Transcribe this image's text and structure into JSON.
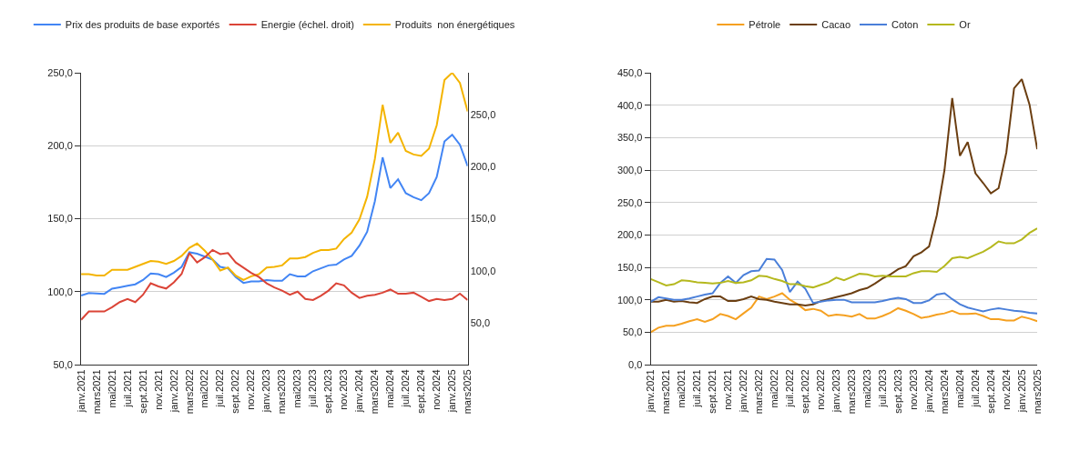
{
  "chart_data": [
    {
      "type": "line",
      "categories": [
        "janv.2021",
        null,
        "mars2021",
        null,
        "mai2021",
        null,
        "juil.2021",
        null,
        "sept.2021",
        null,
        "nov.2021",
        null,
        "janv.2022",
        null,
        "mars2022",
        null,
        "mai2022",
        null,
        "juil.2022",
        null,
        "sept.2022",
        null,
        "nov.2022",
        null,
        "janv.2023",
        null,
        "mars2023",
        null,
        "mai2023",
        null,
        "juil.2023",
        null,
        "sept.2023",
        null,
        "nov.2023",
        null,
        "janv.2024",
        null,
        "mars2024",
        null,
        "mai2024",
        null,
        "juil.2024",
        null,
        "sept.2024",
        null,
        "nov.2024",
        null,
        "janv.2025",
        null,
        "mars2025"
      ],
      "series": [
        {
          "name": "Prix des produits de base exportés",
          "color": "#4285f4",
          "values": [
            97.4,
            99,
            98.8,
            98.5,
            102,
            103,
            104,
            105,
            108,
            112.5,
            112,
            110,
            113,
            117,
            127,
            126,
            124,
            122,
            117,
            116,
            110,
            106,
            107,
            107,
            108,
            107.5,
            107.5,
            112,
            110.5,
            110.5,
            114,
            116,
            118,
            118.5,
            122,
            124.5,
            131.5,
            141,
            162,
            192,
            171,
            177,
            167.5,
            164.7,
            162.7,
            167.5,
            178.6,
            203,
            207.5,
            200.7,
            186
          ]
        },
        {
          "name": "Energie (échel. droit)",
          "color": "#db4437",
          "axis": "y2",
          "values": [
            53,
            61,
            61,
            61,
            65,
            70,
            73,
            70,
            77,
            88,
            85,
            83,
            89,
            97,
            117,
            108,
            113,
            120,
            116,
            117,
            108,
            103,
            98,
            94,
            88,
            84,
            81,
            77,
            80,
            73,
            72,
            76,
            81,
            88,
            86,
            79,
            74,
            76,
            77,
            79,
            82,
            78,
            78,
            79,
            75,
            71,
            73,
            72,
            73,
            78,
            72
          ]
        },
        {
          "name": "Produits  non énergétiques",
          "color": "#f4b400",
          "values": [
            112,
            112,
            111,
            111,
            115,
            115,
            115,
            117,
            119,
            121,
            120.5,
            119,
            121,
            124.5,
            130,
            133,
            128,
            122,
            114.5,
            116.5,
            111,
            108,
            110.5,
            112,
            116.5,
            117,
            118,
            122.7,
            122.7,
            123.7,
            126.6,
            128.5,
            128.5,
            129.5,
            136,
            140.5,
            149.5,
            165,
            191,
            228,
            202,
            209,
            196.4,
            194,
            193,
            198,
            214,
            245,
            250,
            243,
            223.5
          ]
        }
      ],
      "ylim": [
        50,
        250
      ],
      "yticks": [
        {
          "value": 50,
          "label": "50,0"
        },
        {
          "value": 100,
          "label": "100,0"
        },
        {
          "value": 150,
          "label": "150,0"
        },
        {
          "value": 200,
          "label": "200,0"
        },
        {
          "value": 250,
          "label": "250,0"
        }
      ],
      "y2lim": [
        10,
        290
      ],
      "y2ticks": [
        {
          "value": 50,
          "label": "50,0"
        },
        {
          "value": 100,
          "label": "100,0"
        },
        {
          "value": 150,
          "label": "150,0"
        },
        {
          "value": 200,
          "label": "200,0"
        },
        {
          "value": 250,
          "label": "250,0"
        }
      ],
      "grid": "y",
      "legend": "top",
      "marker": "none",
      "line_style": "solid"
    },
    {
      "type": "line",
      "categories": [
        "janv.2021",
        null,
        "mars2021",
        null,
        "mai2021",
        null,
        "juil.2021",
        null,
        "sept.2021",
        null,
        "nov.2021",
        null,
        "janv.2022",
        null,
        "mars2022",
        null,
        "mai2022",
        null,
        "juil.2022",
        null,
        "sept.2022",
        null,
        "nov.2022",
        null,
        "janv.2023",
        null,
        "mars2023",
        null,
        "mai2023",
        null,
        "juil.2023",
        null,
        "sept.2023",
        null,
        "nov.2023",
        null,
        "janv.2024",
        null,
        "mars2024",
        null,
        "mai2024",
        null,
        "juil.2024",
        null,
        "sept.2024",
        null,
        "nov.2024",
        null,
        "janv.2025",
        null,
        "mars2025"
      ],
      "series": [
        {
          "name": "Pétrole",
          "color": "#f5a020",
          "values": [
            50,
            57,
            60,
            60,
            63,
            67,
            70,
            66,
            70,
            78,
            75,
            70,
            79,
            88,
            105,
            101,
            105,
            110,
            100,
            93,
            84,
            86,
            83,
            75,
            77,
            76,
            74,
            78,
            71,
            71,
            75,
            80,
            87,
            83,
            78,
            72,
            74,
            77,
            79,
            83,
            78,
            78,
            79,
            75,
            70,
            70,
            68,
            68,
            74,
            71,
            67
          ]
        },
        {
          "name": "Cacao",
          "color": "#6b3e11",
          "values": [
            97,
            97,
            100,
            97,
            98,
            96,
            95,
            101,
            105,
            105,
            98,
            98,
            101,
            105,
            101,
            100,
            97,
            95,
            93,
            93,
            91,
            93,
            98,
            101,
            104,
            107,
            110,
            115,
            118,
            125,
            133,
            139,
            147,
            152,
            167,
            173,
            182,
            230,
            300,
            411,
            322,
            343,
            295,
            280,
            264,
            272,
            327,
            426,
            440,
            401,
            332
          ]
        },
        {
          "name": "Coton",
          "color": "#4a7fd9",
          "values": [
            97,
            104,
            102,
            100,
            100,
            102,
            105,
            108,
            110,
            126,
            136,
            126,
            138,
            144,
            145,
            163,
            162,
            146,
            112,
            128,
            117,
            95,
            97,
            99,
            100,
            100,
            96,
            96,
            96,
            96,
            98,
            101,
            103,
            101,
            95,
            95,
            99,
            108,
            110,
            101,
            93,
            88,
            85,
            82,
            85,
            87,
            85,
            83,
            82,
            80,
            79
          ]
        },
        {
          "name": "Or",
          "color": "#b5b81e",
          "values": [
            132,
            127,
            122,
            124,
            130,
            129,
            127,
            126,
            125,
            126,
            129,
            126,
            127,
            130,
            137,
            136,
            132,
            129,
            124,
            124,
            121,
            119,
            123,
            127,
            134,
            130,
            135,
            140,
            139,
            136,
            137,
            136,
            136,
            136,
            141,
            144,
            144,
            143,
            152,
            164,
            166,
            164,
            169,
            174,
            181,
            190,
            187,
            187,
            193,
            203,
            210
          ]
        }
      ],
      "ylim": [
        0,
        450
      ],
      "yticks": [
        {
          "value": 0,
          "label": "0,0"
        },
        {
          "value": 50,
          "label": "50,0"
        },
        {
          "value": 100,
          "label": "100,0"
        },
        {
          "value": 150,
          "label": "150,0"
        },
        {
          "value": 200,
          "label": "200,0"
        },
        {
          "value": 250,
          "label": "250,0"
        },
        {
          "value": 300,
          "label": "300,0"
        },
        {
          "value": 350,
          "label": "350,0"
        },
        {
          "value": 400,
          "label": "400,0"
        },
        {
          "value": 450,
          "label": "450,0"
        }
      ],
      "grid": "y",
      "legend": "top",
      "marker": "none",
      "line_style": "solid"
    }
  ]
}
